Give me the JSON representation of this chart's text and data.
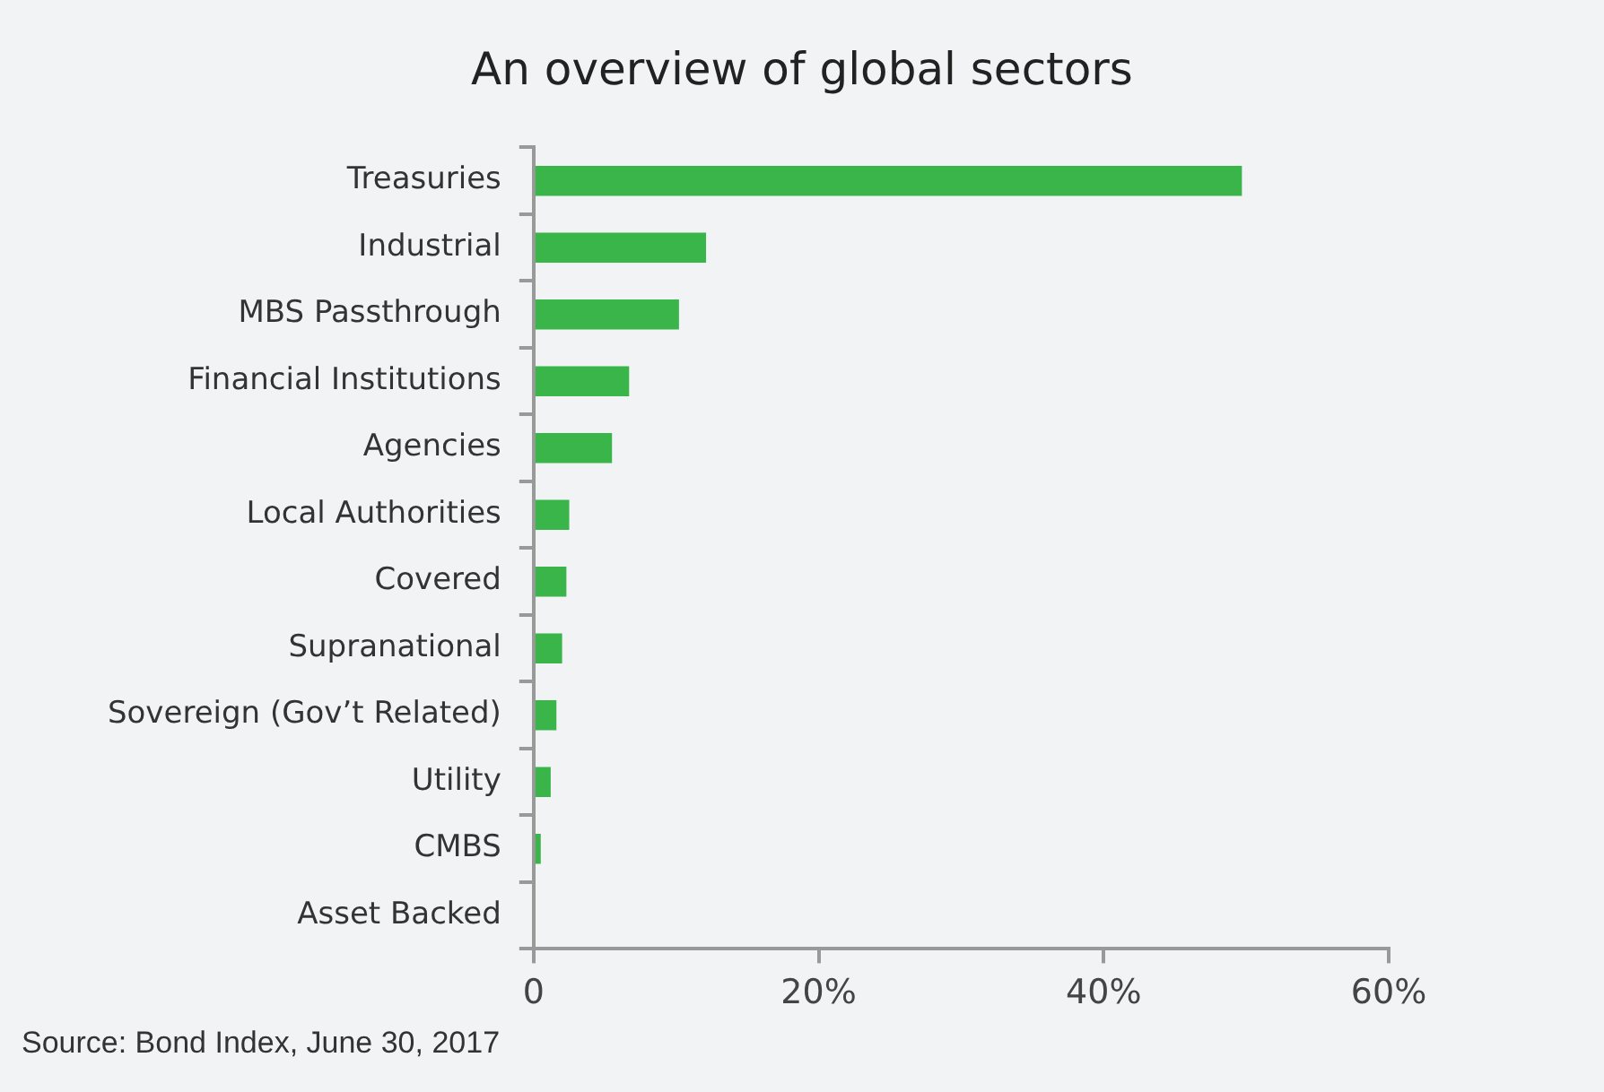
{
  "chart_data": {
    "type": "bar",
    "orientation": "horizontal",
    "title": "An overview of global sectors",
    "categories": [
      "Treasuries",
      "Industrial",
      "MBS Passthrough",
      "Financial Institutions",
      "Agencies",
      "Local Authorities",
      "Covered",
      "Supranational",
      "Sovereign (Gov’t Related)",
      "Utility",
      "CMBS",
      "Asset Backed"
    ],
    "values": [
      49.7,
      12.1,
      10.2,
      6.7,
      5.5,
      2.5,
      2.3,
      2.0,
      1.6,
      1.2,
      0.5,
      0
    ],
    "color": "#39b54a",
    "xlim": [
      0,
      60
    ],
    "xticks": [
      0,
      {
        "value": 20,
        "label": "20%"
      },
      {
        "value": 40,
        "label": "40%"
      },
      {
        "value": 60,
        "label": "60%"
      }
    ],
    "grid": false,
    "legend": false,
    "annotations": [
      "Source: Bond Index, June 30, 2017"
    ]
  }
}
